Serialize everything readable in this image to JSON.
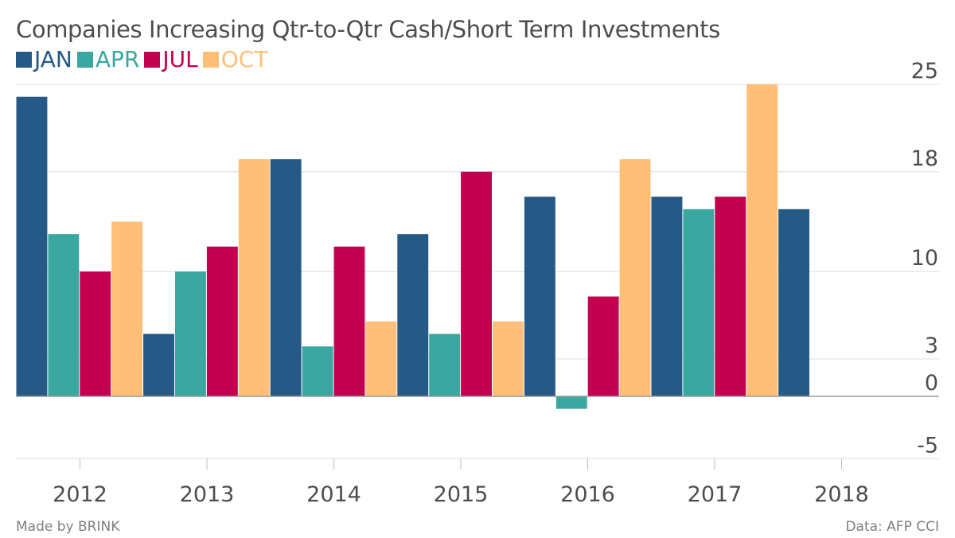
{
  "chart_data": {
    "type": "bar",
    "title": "Companies Increasing Qtr-to-Qtr Cash/Short Term Investments",
    "series": [
      {
        "name": "JAN",
        "color": "#255986"
      },
      {
        "name": "APR",
        "color": "#3aa8a0"
      },
      {
        "name": "JUL",
        "color": "#c2004f"
      },
      {
        "name": "OCT",
        "color": "#ffbf78"
      }
    ],
    "bars": [
      {
        "series": "JAN",
        "year": 2012,
        "value": 24
      },
      {
        "series": "APR",
        "year": 2012,
        "value": 13
      },
      {
        "series": "JUL",
        "year": 2012,
        "value": 10
      },
      {
        "series": "OCT",
        "year": 2012,
        "value": 14
      },
      {
        "series": "JAN",
        "year": 2013,
        "value": 5
      },
      {
        "series": "APR",
        "year": 2013,
        "value": 10
      },
      {
        "series": "JUL",
        "year": 2013,
        "value": 12
      },
      {
        "series": "OCT",
        "year": 2013,
        "value": 19
      },
      {
        "series": "JAN",
        "year": 2014,
        "value": 19
      },
      {
        "series": "APR",
        "year": 2014,
        "value": 4
      },
      {
        "series": "JUL",
        "year": 2014,
        "value": 12
      },
      {
        "series": "OCT",
        "year": 2014,
        "value": 6
      },
      {
        "series": "JAN",
        "year": 2015,
        "value": 13
      },
      {
        "series": "APR",
        "year": 2015,
        "value": 5
      },
      {
        "series": "JUL",
        "year": 2015,
        "value": 18
      },
      {
        "series": "OCT",
        "year": 2015,
        "value": 6
      },
      {
        "series": "JAN",
        "year": 2016,
        "value": 16
      },
      {
        "series": "APR",
        "year": 2016,
        "value": -1
      },
      {
        "series": "JUL",
        "year": 2016,
        "value": 8
      },
      {
        "series": "OCT",
        "year": 2016,
        "value": 19
      },
      {
        "series": "JAN",
        "year": 2017,
        "value": 16
      },
      {
        "series": "APR",
        "year": 2017,
        "value": 15
      },
      {
        "series": "JUL",
        "year": 2017,
        "value": 16
      },
      {
        "series": "OCT",
        "year": 2017,
        "value": 25
      },
      {
        "series": "JAN",
        "year": 2018,
        "value": 15
      }
    ],
    "x_ticks": [
      "2012",
      "2013",
      "2014",
      "2015",
      "2016",
      "2017",
      "2018"
    ],
    "y_ticks": [
      25,
      18,
      10,
      3,
      0,
      -5
    ],
    "ylim": [
      -5,
      25
    ],
    "y_axis_side": "right",
    "grid": true,
    "legend_position": "top-left"
  },
  "footer": {
    "source": "Made by BRINK",
    "credit": "Data: AFP CCI"
  }
}
